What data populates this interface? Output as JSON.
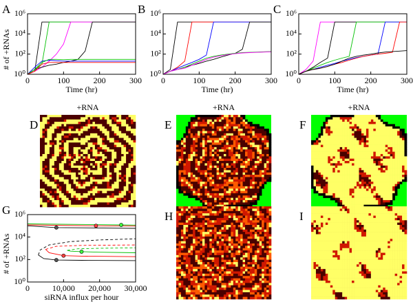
{
  "chart_data": [
    {
      "type": "line",
      "panel_label": "A",
      "ylabel": "# of +RNAs",
      "xlabel": "Time (hr)",
      "yscale": "log",
      "x": [
        0,
        20,
        40,
        60,
        80,
        100,
        120,
        140,
        160,
        180,
        200,
        220,
        240,
        260,
        280,
        300
      ],
      "xlim": [
        0,
        300
      ],
      "xticks": [
        0,
        100,
        200,
        300
      ],
      "ylim": [
        1,
        1000000
      ],
      "yticks": [
        {
          "value": 1,
          "label": "10⁰"
        },
        {
          "value": 100,
          "label": "10²"
        },
        {
          "value": 10000,
          "label": "10⁴"
        },
        {
          "value": 1000000,
          "label": "10⁶"
        }
      ],
      "series": [
        {
          "color": "#000000",
          "values": [
            1,
            2,
            150000,
            150000,
            150000,
            150000,
            150000,
            150000,
            150000,
            150000,
            150000,
            150000,
            150000,
            150000,
            150000,
            150000
          ]
        },
        {
          "color": "#00c000",
          "values": [
            1,
            3,
            10,
            150000,
            150000,
            150000,
            150000,
            150000,
            150000,
            150000,
            150000,
            150000,
            150000,
            150000,
            150000,
            150000
          ]
        },
        {
          "color": "#ff00ff",
          "values": [
            1,
            2,
            5,
            20,
            100,
            1000,
            150000,
            150000,
            150000,
            150000,
            150000,
            150000,
            150000,
            150000,
            150000,
            150000
          ]
        },
        {
          "color": "#000000",
          "values": [
            1,
            3,
            5,
            8,
            10,
            15,
            20,
            30,
            200,
            150000,
            150000,
            150000,
            150000,
            150000,
            150000,
            150000
          ]
        },
        {
          "color": "#0000ff",
          "values": [
            1,
            5,
            20,
            25,
            22,
            20,
            20,
            20,
            20,
            20,
            20,
            20,
            20,
            20,
            20,
            20
          ]
        },
        {
          "color": "#00c000",
          "values": [
            1,
            3,
            15,
            30,
            30,
            28,
            30,
            30,
            30,
            30,
            30,
            30,
            30,
            30,
            30,
            30
          ]
        },
        {
          "color": "#ff0000",
          "values": [
            1,
            2,
            10,
            15,
            15,
            15,
            15,
            15,
            15,
            15,
            15,
            15,
            15,
            15,
            15,
            15
          ]
        }
      ]
    },
    {
      "type": "line",
      "panel_label": "B",
      "xlabel": "Time (hr)",
      "yscale": "log",
      "x": [
        0,
        20,
        40,
        60,
        80,
        100,
        120,
        140,
        160,
        180,
        200,
        220,
        240,
        260,
        280,
        300
      ],
      "xlim": [
        0,
        300
      ],
      "xticks": [
        0,
        100,
        200,
        300
      ],
      "ylim": [
        1,
        1000000
      ],
      "yticks": [
        {
          "value": 1,
          "label": "10⁰"
        },
        {
          "value": 100,
          "label": "10²"
        },
        {
          "value": 10000,
          "label": "10⁴"
        },
        {
          "value": 1000000,
          "label": "10⁶"
        }
      ],
      "series": [
        {
          "color": "#000000",
          "values": [
            1,
            3,
            150000,
            150000,
            150000,
            150000,
            150000,
            150000,
            150000,
            150000,
            150000,
            150000,
            150000,
            150000,
            150000,
            150000
          ]
        },
        {
          "color": "#ff0000",
          "values": [
            1,
            2,
            5,
            20,
            150000,
            150000,
            150000,
            150000,
            150000,
            150000,
            150000,
            150000,
            150000,
            150000,
            150000,
            150000
          ]
        },
        {
          "color": "#0000ff",
          "values": [
            1,
            2,
            4,
            8,
            15,
            30,
            80,
            150000,
            150000,
            150000,
            150000,
            150000,
            150000,
            150000,
            150000,
            150000
          ]
        },
        {
          "color": "#000000",
          "values": [
            1,
            2,
            3,
            5,
            8,
            12,
            20,
            30,
            50,
            80,
            120,
            300,
            150000,
            150000,
            150000,
            150000
          ]
        },
        {
          "color": "#00c000",
          "values": [
            1,
            2,
            3,
            5,
            10,
            20,
            40,
            60,
            80,
            100,
            120,
            140,
            150,
            160,
            170,
            180
          ]
        },
        {
          "color": "#ff00ff",
          "values": [
            1,
            2,
            3,
            4,
            8,
            15,
            30,
            50,
            70,
            90,
            110,
            130,
            140,
            150,
            160,
            170
          ]
        }
      ]
    },
    {
      "type": "line",
      "panel_label": "C",
      "xlabel": "Time (hr)",
      "yscale": "log",
      "x": [
        0,
        20,
        40,
        60,
        80,
        100,
        120,
        140,
        160,
        180,
        200,
        220,
        240,
        260,
        280,
        300
      ],
      "xlim": [
        0,
        300
      ],
      "xticks": [
        0,
        100,
        200,
        300
      ],
      "ylim": [
        1,
        1000000
      ],
      "yticks": [
        {
          "value": 1,
          "label": "10⁰"
        },
        {
          "value": 100,
          "label": "10²"
        },
        {
          "value": 10000,
          "label": "10⁴"
        },
        {
          "value": 1000000,
          "label": "10⁶"
        }
      ],
      "series": [
        {
          "color": "#ff00ff",
          "values": [
            1,
            3,
            20,
            150000,
            150000,
            150000,
            150000,
            150000,
            150000,
            150000,
            150000,
            150000,
            150000,
            150000,
            150000,
            150000
          ]
        },
        {
          "color": "#000000",
          "values": [
            1,
            2,
            5,
            15,
            40,
            150000,
            150000,
            150000,
            150000,
            150000,
            150000,
            150000,
            150000,
            150000,
            150000,
            150000
          ]
        },
        {
          "color": "#00c000",
          "values": [
            1,
            2,
            4,
            8,
            15,
            25,
            40,
            60,
            150000,
            150000,
            150000,
            150000,
            150000,
            150000,
            150000,
            150000
          ]
        },
        {
          "color": "#0000ff",
          "values": [
            1,
            2,
            3,
            5,
            8,
            12,
            20,
            30,
            45,
            60,
            80,
            100,
            150000,
            150000,
            150000,
            150000
          ]
        },
        {
          "color": "#ff0000",
          "values": [
            1,
            2,
            3,
            4,
            6,
            10,
            15,
            25,
            40,
            60,
            80,
            100,
            120,
            150,
            150000,
            150000
          ]
        },
        {
          "color": "#000000",
          "values": [
            1,
            2,
            3,
            4,
            6,
            10,
            20,
            40,
            60,
            80,
            100,
            130,
            160,
            180,
            200,
            220
          ]
        }
      ]
    },
    {
      "type": "line",
      "panel_label": "G",
      "ylabel": "# of +RNAs",
      "xlabel": "siRNA influx per hour",
      "yscale": "log",
      "xlim": [
        0,
        30000
      ],
      "xticks": [
        0,
        {
          "value": 10000,
          "label": "10,000"
        },
        {
          "value": 20000,
          "label": "20,000"
        },
        {
          "value": 30000,
          "label": "30,000"
        }
      ],
      "ylim": [
        1,
        1000000
      ],
      "yticks": [
        {
          "value": 1,
          "label": "10⁰"
        },
        {
          "value": 100,
          "label": "10²"
        },
        {
          "value": 10000,
          "label": "10⁴"
        },
        {
          "value": 1000000,
          "label": "10⁶"
        }
      ],
      "series": [
        {
          "color": "#000000",
          "dash": false,
          "x": [
            0,
            8000,
            30000
          ],
          "values": [
            100000,
            70000,
            60000
          ]
        },
        {
          "color": "#ff0000",
          "dash": false,
          "x": [
            0,
            19000,
            30000
          ],
          "values": [
            120000,
            100000,
            95000
          ]
        },
        {
          "color": "#00c000",
          "dash": false,
          "x": [
            0,
            26000,
            30000
          ],
          "values": [
            150000,
            120000,
            115000
          ]
        },
        {
          "color": "#000000",
          "dash": false,
          "x": [
            30000,
            15000,
            8000,
            4500,
            3000
          ],
          "values": [
            80,
            85,
            90,
            120,
            250
          ]
        },
        {
          "color": "#000000",
          "dash": true,
          "x": [
            3000,
            3500,
            6000,
            12000,
            20000,
            30000
          ],
          "values": [
            250,
            700,
            2000,
            4000,
            5500,
            7000
          ]
        },
        {
          "color": "#ff0000",
          "dash": false,
          "x": [
            30000,
            15000,
            10000,
            6000,
            5000
          ],
          "values": [
            180,
            200,
            220,
            400,
            800
          ]
        },
        {
          "color": "#ff0000",
          "dash": true,
          "x": [
            5000,
            8000,
            15000,
            30000
          ],
          "values": [
            800,
            1500,
            1800,
            2000
          ]
        },
        {
          "color": "#00c000",
          "dash": false,
          "x": [
            30000,
            20000,
            15000,
            12000,
            11000
          ],
          "values": [
            400,
            450,
            500,
            550,
            650
          ]
        },
        {
          "color": "#00c000",
          "dash": true,
          "x": [
            11000,
            14000,
            20000,
            30000
          ],
          "values": [
            650,
            900,
            1000,
            1100
          ]
        }
      ],
      "markers": [
        {
          "color": "#555555",
          "x": 8000,
          "y": 70000
        },
        {
          "color": "#555555",
          "x": 8000,
          "y": 90
        },
        {
          "color": "#ff4040",
          "x": 19000,
          "y": 100000
        },
        {
          "color": "#ff4040",
          "x": 10000,
          "y": 220
        },
        {
          "color": "#40ff40",
          "x": 26000,
          "y": 120000
        },
        {
          "color": "#40ff40",
          "x": 15000,
          "y": 500
        }
      ]
    }
  ],
  "images": [
    {
      "panel_label": "D",
      "title": "+RNA"
    },
    {
      "panel_label": "E",
      "title": "+RNA"
    },
    {
      "panel_label": "F",
      "title": "+RNA"
    },
    {
      "panel_label": "H"
    },
    {
      "panel_label": "I"
    }
  ]
}
